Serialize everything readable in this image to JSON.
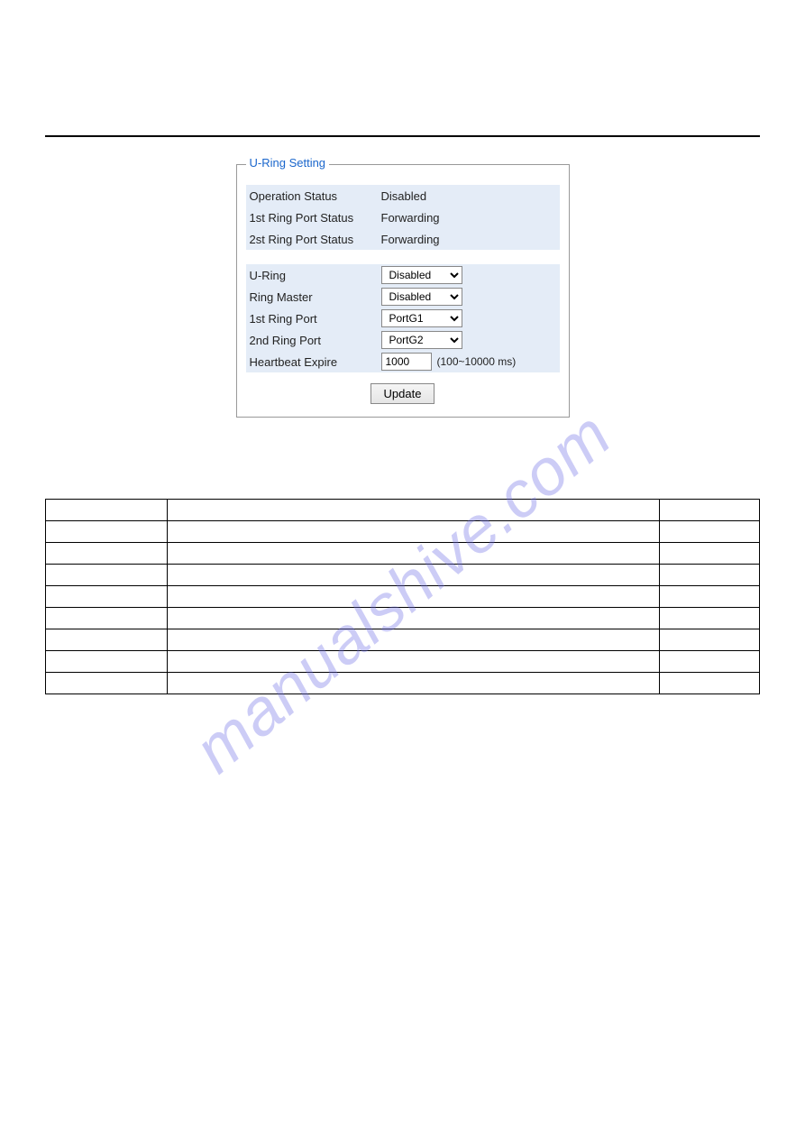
{
  "watermark": "manualshive.com",
  "panel": {
    "legend": "U-Ring Setting",
    "status": {
      "operation_label": "Operation Status",
      "operation_value": "Disabled",
      "port1_label": "1st Ring Port Status",
      "port1_value": "Forwarding",
      "port2_label": "2st Ring Port Status",
      "port2_value": "Forwarding"
    },
    "settings": {
      "uring_label": "U-Ring",
      "uring_value": "Disabled",
      "master_label": "Ring Master",
      "master_value": "Disabled",
      "port1_label": "1st Ring Port",
      "port1_value": "PortG1",
      "port2_label": "2nd Ring Port",
      "port2_value": "PortG2",
      "heartbeat_label": "Heartbeat Expire",
      "heartbeat_value": "1000",
      "heartbeat_hint": "(100~10000 ms)"
    },
    "update_button": "Update"
  }
}
